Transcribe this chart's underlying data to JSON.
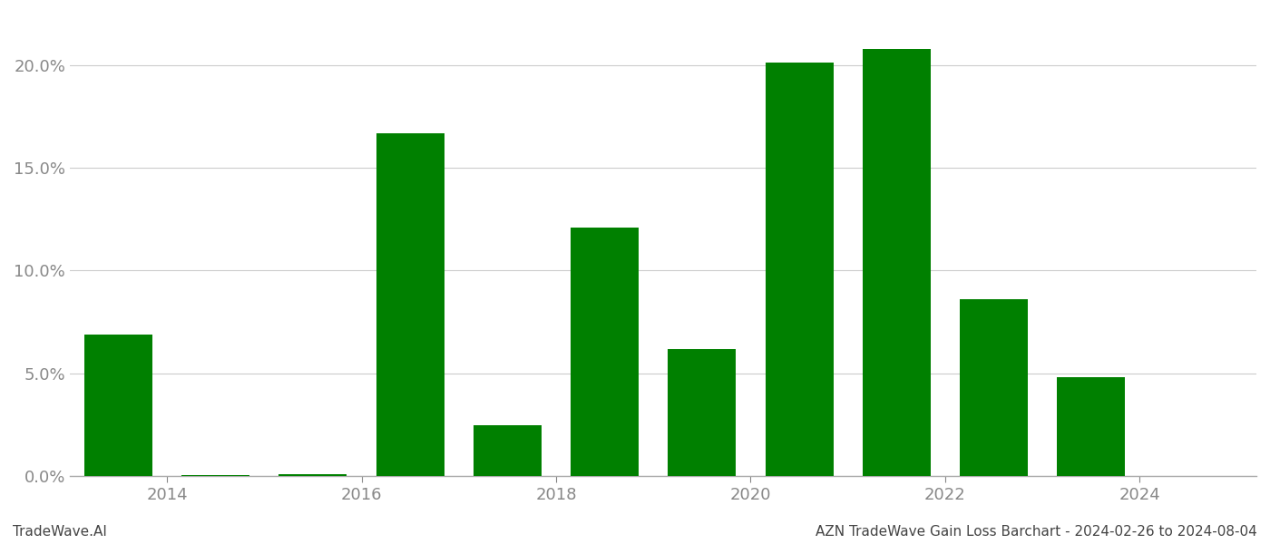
{
  "bar_positions": [
    2013.5,
    2014.5,
    2015.5,
    2016.5,
    2017.5,
    2018.5,
    2019.5,
    2020.5,
    2021.5,
    2022.5,
    2023.5,
    2024.5
  ],
  "values": [
    0.069,
    0.0005,
    0.001,
    0.167,
    0.025,
    0.121,
    0.062,
    0.201,
    0.208,
    0.086,
    0.048,
    0.0
  ],
  "xtick_positions": [
    2014,
    2016,
    2018,
    2020,
    2022,
    2024
  ],
  "xtick_labels": [
    "2014",
    "2016",
    "2018",
    "2020",
    "2022",
    "2024"
  ],
  "bar_color": "#008000",
  "background_color": "#ffffff",
  "ylim": [
    0,
    0.225
  ],
  "yticks": [
    0.0,
    0.05,
    0.1,
    0.15,
    0.2
  ],
  "footer_left": "TradeWave.AI",
  "footer_right": "AZN TradeWave Gain Loss Barchart - 2024-02-26 to 2024-08-04",
  "footer_fontsize": 11,
  "grid_color": "#cccccc",
  "tick_color": "#888888",
  "bar_width": 0.7,
  "xlim": [
    2013.0,
    2025.2
  ]
}
